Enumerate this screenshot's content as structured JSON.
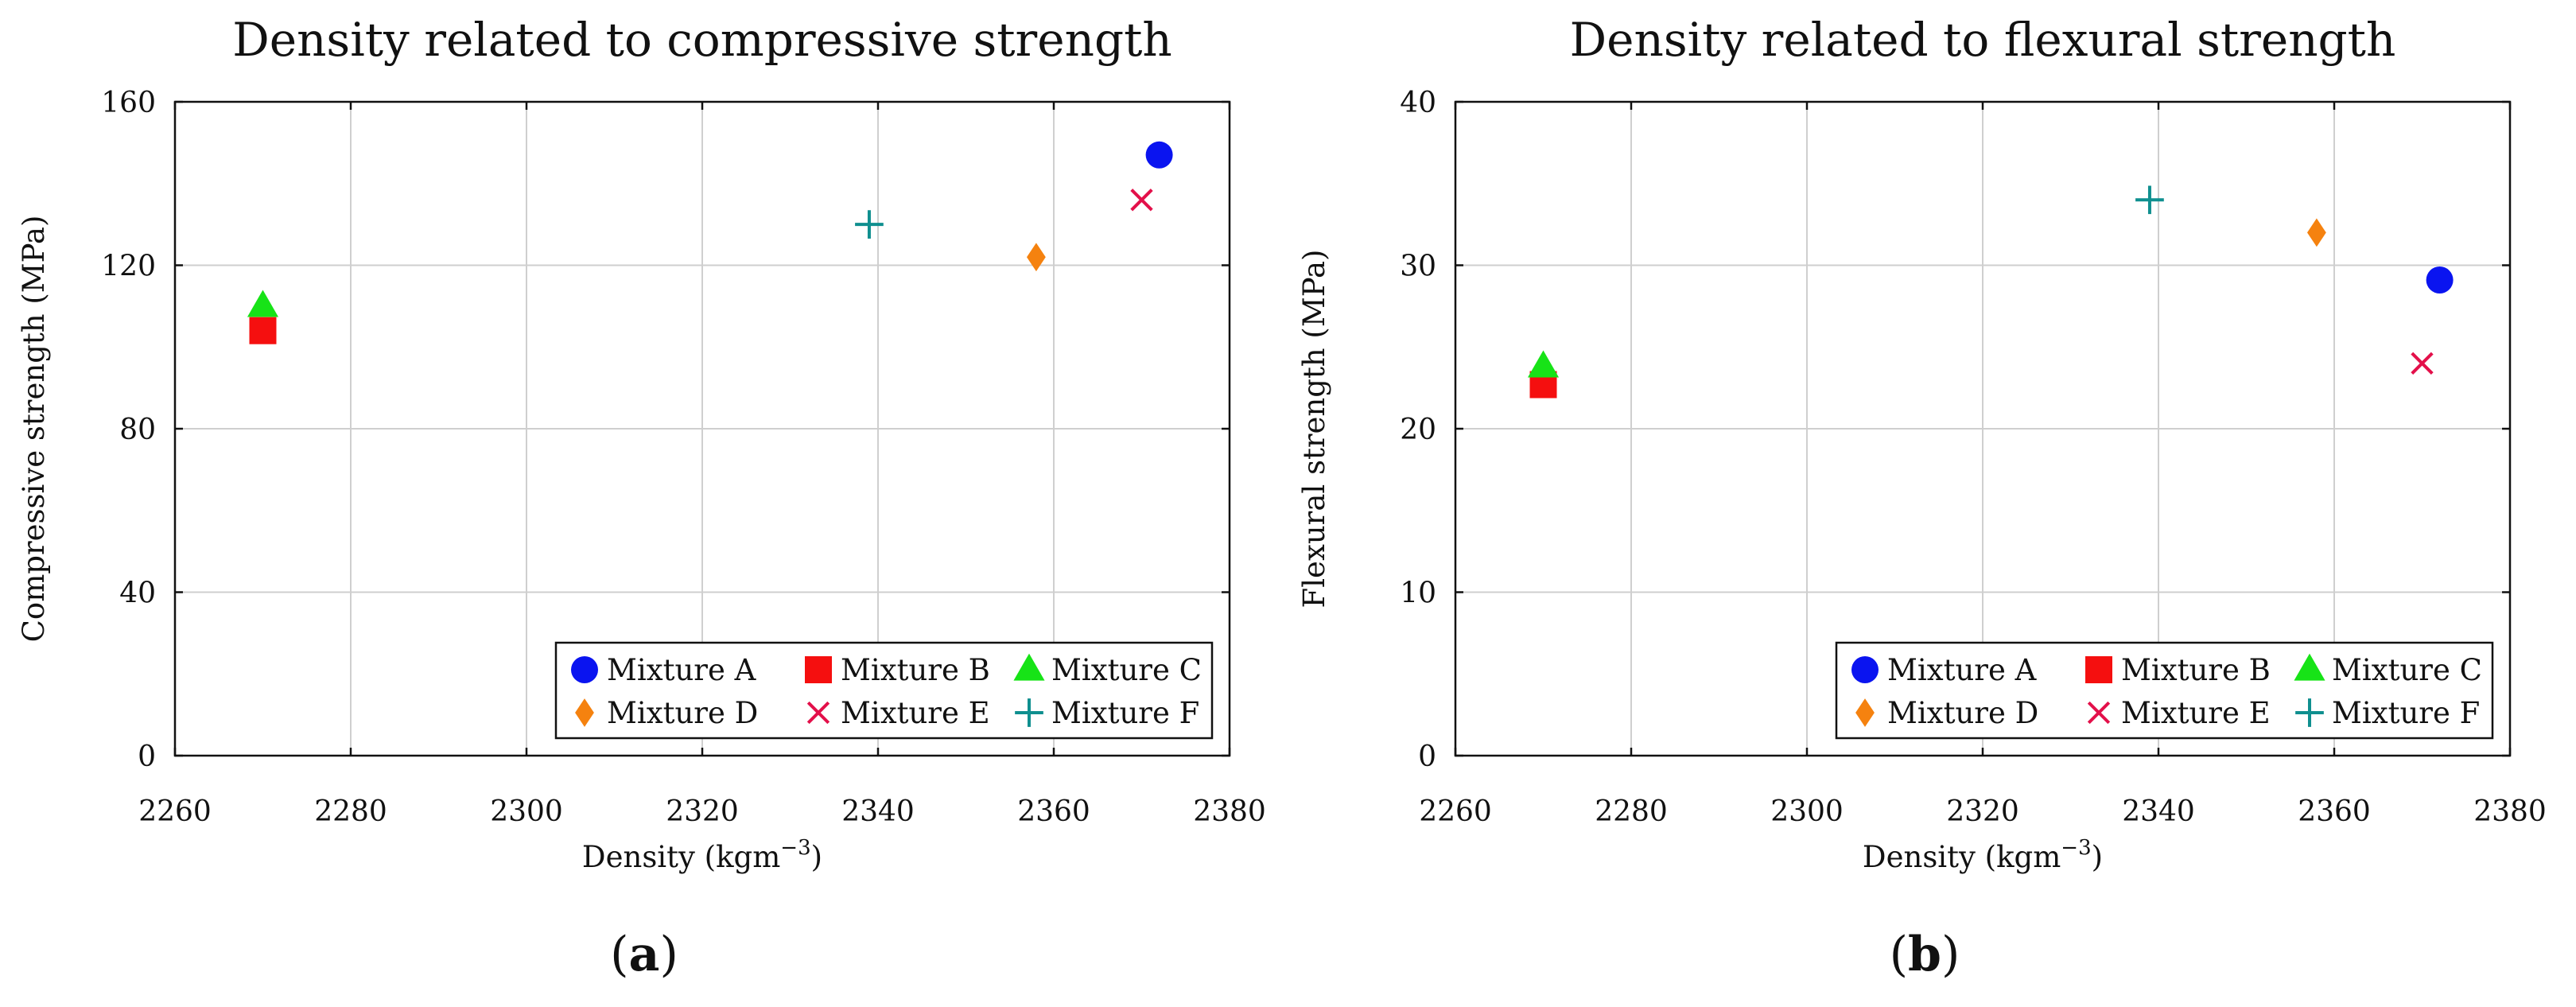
{
  "chart_data": [
    {
      "type": "scatter",
      "title": "Density related to compressive strength",
      "xlabel": "Density (kgm",
      "xlabel_sup": "−3",
      "xlabel_close": ")",
      "ylabel": "Compressive strength (MPa)",
      "xlim": [
        2260,
        2380
      ],
      "ylim": [
        0,
        160
      ],
      "xticks": [
        2260,
        2280,
        2300,
        2320,
        2340,
        2360,
        2380
      ],
      "yticks": [
        0,
        40,
        80,
        120,
        160
      ],
      "grid": true,
      "legend_position": "bottom-right",
      "caption_open": "(",
      "caption_letter": "a",
      "caption_close": ")",
      "series": [
        {
          "name": "Mixture A",
          "marker": "circle",
          "color": "#0a14f0",
          "x": [
            2372
          ],
          "y": [
            147
          ]
        },
        {
          "name": "Mixture B",
          "marker": "square",
          "color": "#f50f0f",
          "x": [
            2270
          ],
          "y": [
            104
          ]
        },
        {
          "name": "Mixture C",
          "marker": "triangle",
          "color": "#17e317",
          "x": [
            2270
          ],
          "y": [
            110
          ]
        },
        {
          "name": "Mixture D",
          "marker": "diamond",
          "color": "#f5820f",
          "x": [
            2358
          ],
          "y": [
            122
          ]
        },
        {
          "name": "Mixture E",
          "marker": "cross",
          "color": "#e3104a",
          "x": [
            2370
          ],
          "y": [
            136
          ]
        },
        {
          "name": "Mixture F",
          "marker": "plus",
          "color": "#0f8f8f",
          "x": [
            2339
          ],
          "y": [
            130
          ]
        }
      ]
    },
    {
      "type": "scatter",
      "title": "Density related to flexural strength",
      "xlabel": "Density (kgm",
      "xlabel_sup": "−3",
      "xlabel_close": ")",
      "ylabel": "Flexural strength (MPa)",
      "xlim": [
        2260,
        2380
      ],
      "ylim": [
        0,
        40
      ],
      "xticks": [
        2260,
        2280,
        2300,
        2320,
        2340,
        2360,
        2380
      ],
      "yticks": [
        0,
        10,
        20,
        30,
        40
      ],
      "grid": true,
      "legend_position": "bottom-right",
      "caption_open": "(",
      "caption_letter": "b",
      "caption_close": ")",
      "series": [
        {
          "name": "Mixture A",
          "marker": "circle",
          "color": "#0a14f0",
          "x": [
            2372
          ],
          "y": [
            29.1
          ]
        },
        {
          "name": "Mixture B",
          "marker": "square",
          "color": "#f50f0f",
          "x": [
            2270
          ],
          "y": [
            22.7
          ]
        },
        {
          "name": "Mixture C",
          "marker": "triangle",
          "color": "#17e317",
          "x": [
            2270
          ],
          "y": [
            23.8
          ]
        },
        {
          "name": "Mixture D",
          "marker": "diamond",
          "color": "#f5820f",
          "x": [
            2358
          ],
          "y": [
            32
          ]
        },
        {
          "name": "Mixture E",
          "marker": "cross",
          "color": "#e3104a",
          "x": [
            2370
          ],
          "y": [
            24
          ]
        },
        {
          "name": "Mixture F",
          "marker": "plus",
          "color": "#0f8f8f",
          "x": [
            2339
          ],
          "y": [
            34
          ]
        }
      ]
    }
  ]
}
